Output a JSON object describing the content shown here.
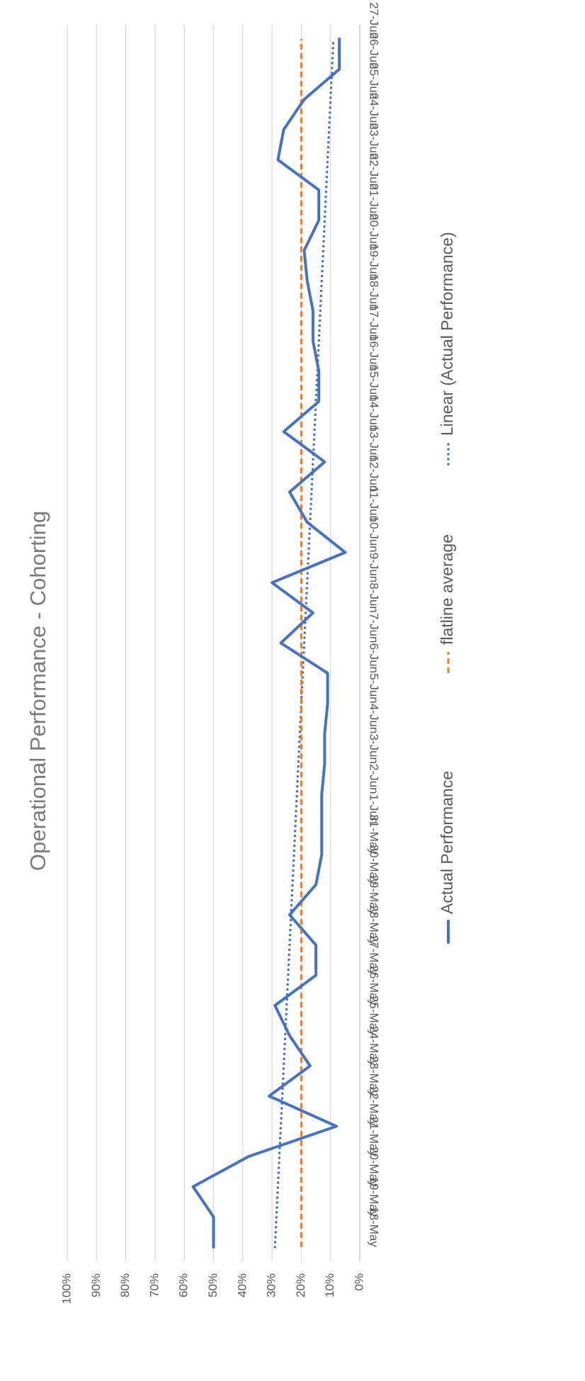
{
  "chart_data": {
    "type": "line",
    "title": "Operational Performance - Cohorting",
    "xlabel": "",
    "ylabel": "",
    "ylim": [
      0,
      1
    ],
    "y_ticks": [
      "0%",
      "10%",
      "20%",
      "30%",
      "40%",
      "50%",
      "60%",
      "70%",
      "80%",
      "90%",
      "100%"
    ],
    "categories": [
      "18-May",
      "19-May",
      "20-May",
      "21-May",
      "22-May",
      "23-May",
      "24-May",
      "25-May",
      "26-May",
      "27-May",
      "28-May",
      "29-May",
      "30-May",
      "31-May",
      "1-Jun",
      "2-Jun",
      "3-Jun",
      "4-Jun",
      "5-Jun",
      "6-Jun",
      "7-Jun",
      "8-Jun",
      "9-Jun",
      "10-Jun",
      "11-Jun",
      "12-Jun",
      "13-Jun",
      "14-Jun",
      "15-Jun",
      "16-Jun",
      "17-Jun",
      "18-Jun",
      "19-Jun",
      "20-Jun",
      "21-Jun",
      "22-Jun",
      "23-Jun",
      "24-Jun",
      "25-Jun",
      "26-Jun",
      "27-Jun"
    ],
    "series": [
      {
        "name": "Actual Performance",
        "style": "solid",
        "color": "#4472c4",
        "values": [
          0.5,
          0.5,
          0.57,
          0.38,
          0.08,
          0.31,
          0.17,
          0.24,
          0.29,
          0.15,
          0.15,
          0.24,
          0.15,
          0.13,
          0.13,
          0.13,
          0.12,
          0.12,
          0.11,
          0.11,
          0.27,
          0.16,
          0.3,
          0.05,
          0.18,
          0.24,
          0.12,
          0.26,
          0.14,
          0.14,
          0.16,
          0.16,
          0.18,
          0.19,
          0.14,
          0.14,
          0.28,
          0.26,
          0.19,
          0.07,
          0.07
        ]
      },
      {
        "name": "flatline average",
        "style": "dashed",
        "color": "#ed7d31",
        "values": [
          0.2,
          0.2,
          0.2,
          0.2,
          0.2,
          0.2,
          0.2,
          0.2,
          0.2,
          0.2,
          0.2,
          0.2,
          0.2,
          0.2,
          0.2,
          0.2,
          0.2,
          0.2,
          0.2,
          0.2,
          0.2,
          0.2,
          0.2,
          0.2,
          0.2,
          0.2,
          0.2,
          0.2,
          0.2,
          0.2,
          0.2,
          0.2,
          0.2,
          0.2,
          0.2,
          0.2,
          0.2,
          0.2,
          0.2,
          0.2,
          0.2
        ]
      },
      {
        "name": "Linear (Actual Performance)",
        "style": "dotted",
        "color": "#4472c4",
        "values": [
          0.29,
          0.285,
          0.28,
          0.275,
          0.27,
          0.265,
          0.26,
          0.255,
          0.25,
          0.245,
          0.24,
          0.235,
          0.23,
          0.225,
          0.22,
          0.215,
          0.21,
          0.205,
          0.2,
          0.195,
          0.19,
          0.185,
          0.18,
          0.175,
          0.17,
          0.165,
          0.16,
          0.155,
          0.15,
          0.145,
          0.14,
          0.135,
          0.13,
          0.125,
          0.12,
          0.115,
          0.11,
          0.105,
          0.1,
          0.095,
          0.09
        ]
      }
    ],
    "grid": true,
    "orientation": "rotated 90 degrees clockwise (x axis runs bottom-to-top)",
    "legend_position": "right"
  }
}
